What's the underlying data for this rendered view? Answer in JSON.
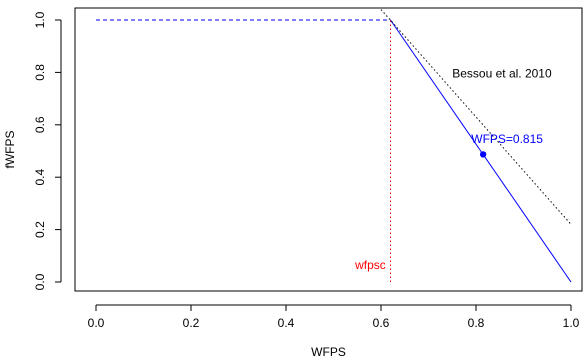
{
  "chart_data": {
    "type": "line",
    "title": "",
    "xlabel": "WFPS",
    "ylabel": "fWFPS",
    "xlim": [
      -0.04,
      1.04
    ],
    "ylim": [
      -0.04,
      1.04
    ],
    "x_ticks": [
      0.0,
      0.2,
      0.4,
      0.6,
      0.8,
      1.0
    ],
    "x_tick_labels": [
      "0.0",
      "0.2",
      "0.4",
      "0.6",
      "0.8",
      "1.0"
    ],
    "y_ticks": [
      0.0,
      0.2,
      0.4,
      0.6,
      0.8,
      1.0
    ],
    "y_tick_labels": [
      "0.0",
      "0.2",
      "0.4",
      "0.6",
      "0.8",
      "1.0"
    ],
    "grid": false,
    "series": [
      {
        "color": "#0000ff",
        "style": "dashed",
        "points": [
          [
            0.0,
            1.0
          ],
          [
            0.62,
            1.0
          ]
        ]
      },
      {
        "color": "#0000ff",
        "style": "solid",
        "points": [
          [
            0.62,
            1.0
          ],
          [
            1.0,
            0.0
          ]
        ]
      },
      {
        "name": "Bessou et al. 2010",
        "color": "#000000",
        "style": "dotted",
        "points": [
          [
            0.6,
            1.04
          ],
          [
            1.0,
            0.22
          ]
        ]
      },
      {
        "color": "#ff0000",
        "style": "dotted",
        "points": [
          [
            0.62,
            0.0
          ],
          [
            0.62,
            1.0
          ]
        ]
      }
    ],
    "highlight_point": {
      "x": 0.815,
      "y": 0.487,
      "color": "#0000ff"
    },
    "annotations": [
      {
        "text": "Bessou et al. 2010",
        "x": 0.75,
        "y": 0.78,
        "color": "#000000",
        "anchor": "start"
      },
      {
        "text": "WFPS=0.815",
        "x": 0.79,
        "y": 0.53,
        "color": "#0000ff",
        "anchor": "start"
      },
      {
        "text": "wfpsc",
        "x": 0.61,
        "y": 0.05,
        "color": "#ff0000",
        "anchor": "end"
      }
    ]
  }
}
